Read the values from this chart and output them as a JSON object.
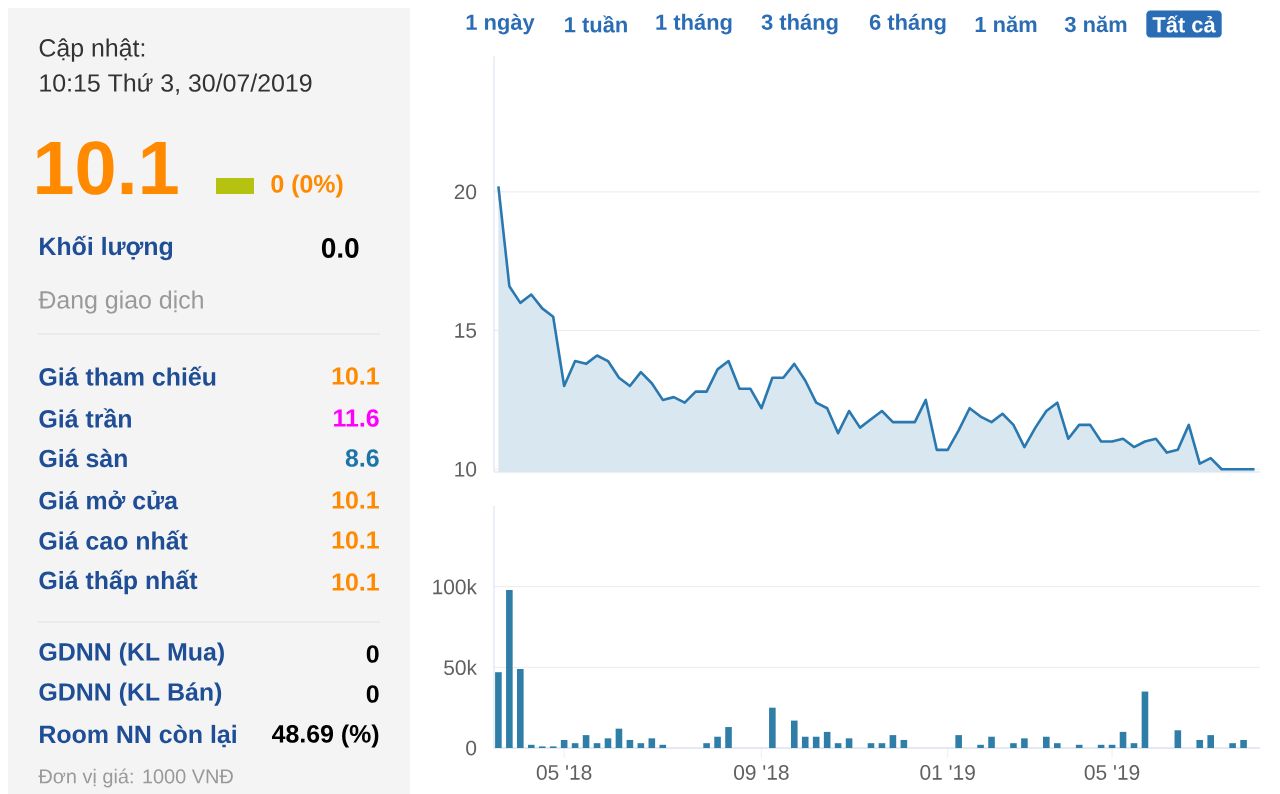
{
  "chart_data": [
    {
      "type": "other",
      "annotations": [
        "Cập nhật:",
        "10:15 Thứ 3, 30/07/2019",
        "10.1",
        "0 (0%)",
        "Khối lượng",
        "0.0",
        "Đang giao dịch",
        "Giá tham chiếu",
        "10.1",
        "Giá trần",
        "11.6",
        "Giá sàn",
        "8.6",
        "Giá mở cửa",
        "10.1",
        "Giá cao nhất",
        "10.1",
        "Giá thấp nhất",
        "10.1",
        "GDNN (KL Mua)",
        "0",
        "GDNN (KL Bán)",
        "0",
        "Room NN còn lại",
        "48.69 (%)",
        "Đơn vị giá: 1000 VNĐ"
      ]
    },
    {
      "type": "area",
      "color": "#2a78b0",
      "annotations": [
        "1 ngày",
        "1 tuần",
        "1 tháng",
        "3 tháng",
        "6 tháng",
        "1 năm",
        "3 năm",
        "Tất cả"
      ],
      "categories": [
        null,
        null,
        null,
        null,
        null,
        null,
        null,
        null,
        null,
        null,
        null,
        null,
        null,
        null,
        null,
        null,
        null,
        null,
        null,
        null,
        null,
        null,
        null,
        null,
        null,
        null,
        null,
        null,
        null,
        null,
        null,
        null,
        null,
        null,
        null,
        null,
        null,
        null,
        null,
        null,
        null,
        null,
        null,
        null,
        null,
        null,
        null,
        null,
        null,
        null,
        null,
        null,
        null,
        null,
        null,
        null,
        null,
        null,
        null,
        null,
        null,
        null,
        null,
        null,
        null,
        null,
        null,
        null,
        null,
        null
      ],
      "values": [
        20.2,
        16.6,
        16.0,
        16.3,
        15.8,
        15.5,
        13.0,
        13.9,
        13.8,
        14.1,
        13.9,
        13.3,
        13.0,
        13.5,
        13.1,
        12.5,
        12.6,
        12.4,
        12.8,
        12.8,
        13.6,
        13.9,
        12.9,
        12.9,
        12.2,
        13.3,
        13.3,
        13.8,
        13.2,
        12.4,
        12.2,
        11.3,
        12.1,
        11.5,
        11.8,
        12.1,
        11.7,
        11.7,
        11.7,
        12.5,
        10.7,
        10.7,
        11.4,
        12.2,
        11.9,
        11.7,
        12.0,
        11.6,
        10.8,
        11.5,
        12.1,
        12.4,
        11.1,
        11.6,
        11.6,
        11.0,
        11.0,
        11.1,
        10.8,
        11.0,
        11.1,
        10.6,
        10.7,
        11.6,
        10.2,
        10.4,
        10.0,
        10.0,
        10.0,
        10.0
      ],
      "ylim": [
        9.9,
        24.9
      ],
      "yticks": [
        10,
        15,
        20
      ],
      "grid": "y",
      "tick_labels": "y"
    },
    {
      "type": "bar",
      "color": "#2f7ea8",
      "categories": [
        null,
        null,
        null,
        null,
        null,
        null,
        "05 '18",
        null,
        null,
        null,
        null,
        null,
        null,
        null,
        null,
        null,
        null,
        null,
        null,
        null,
        null,
        null,
        null,
        null,
        "09 '18",
        null,
        null,
        null,
        null,
        null,
        null,
        null,
        null,
        null,
        null,
        null,
        null,
        null,
        null,
        null,
        null,
        "01 '19",
        null,
        null,
        null,
        null,
        null,
        null,
        null,
        null,
        null,
        null,
        null,
        null,
        null,
        null,
        "05 '19",
        null,
        null,
        null,
        null,
        null,
        null,
        null,
        null,
        null,
        null,
        null,
        null,
        null
      ],
      "values": [
        47000,
        98000,
        49000,
        2000,
        1000,
        1000,
        5000,
        3000,
        8000,
        3000,
        6000,
        12000,
        5000,
        3000,
        6000,
        2000,
        null,
        null,
        null,
        3000,
        7000,
        13000,
        null,
        null,
        null,
        25000,
        null,
        17000,
        7000,
        7000,
        10000,
        3000,
        6000,
        null,
        3000,
        3000,
        8000,
        5000,
        null,
        null,
        null,
        null,
        8000,
        null,
        2000,
        7000,
        null,
        3000,
        6000,
        null,
        7000,
        3000,
        null,
        2000,
        null,
        2000,
        2000,
        10000,
        3000,
        35000,
        null,
        null,
        11000,
        null,
        5000,
        8000,
        null,
        3000,
        5000,
        null
      ],
      "ylim": [
        0,
        150000
      ],
      "yticks": [
        0,
        {
          "value": 50000,
          "label": "50k"
        },
        {
          "value": 100000,
          "label": "100k"
        }
      ],
      "grid": "y"
    }
  ]
}
